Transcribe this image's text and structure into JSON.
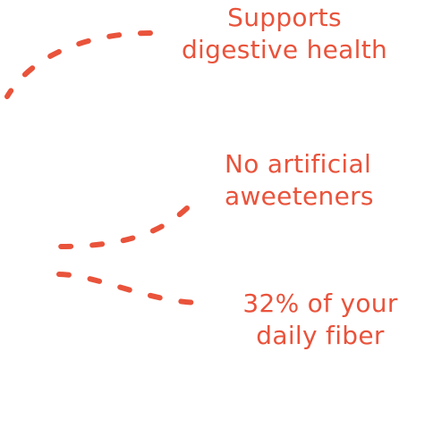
{
  "colors": {
    "accent": "#e9533b"
  },
  "callouts": [
    {
      "lines": [
        "Supports",
        "digestive health"
      ]
    },
    {
      "lines": [
        "No artificial",
        "aweeteners"
      ]
    },
    {
      "lines": [
        "32% of your",
        "daily fiber"
      ]
    }
  ]
}
